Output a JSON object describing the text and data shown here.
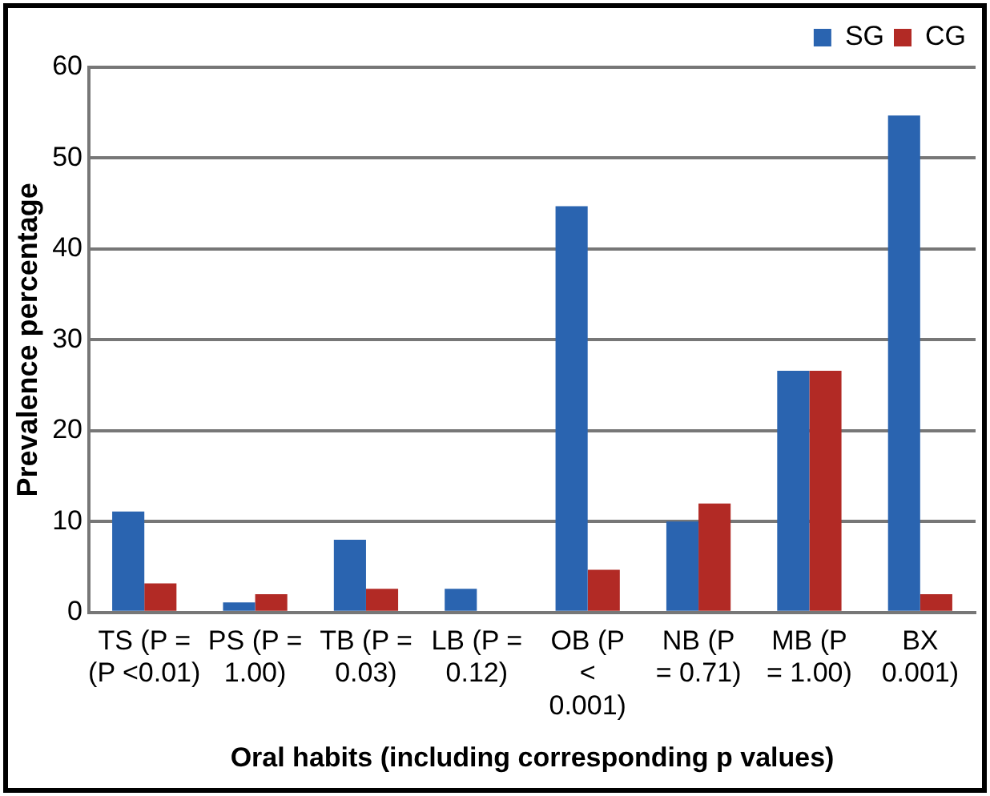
{
  "chart_data": {
    "type": "bar",
    "xlabel": "Oral habits (including corresponding p values)",
    "ylabel": "Prevalence percentage",
    "categories": [
      "TS (P =\n(P <0.01)",
      "PS (P =\n1.00)",
      "TB (P =\n0.03)",
      "LB (P =\n0.12)",
      "OB (P\n<\n0.001)",
      "NB (P\n= 0.71)",
      "MB (P\n= 1.00)",
      "BX\n0.001)"
    ],
    "series": [
      {
        "name": "SG",
        "color": "#2a64b0",
        "values": [
          11.1,
          1.1,
          8.0,
          2.6,
          44.7,
          10.0,
          26.6,
          54.7
        ]
      },
      {
        "name": "CG",
        "color": "#b22a25",
        "values": [
          3.2,
          2.0,
          2.6,
          0,
          4.7,
          12.0,
          26.6,
          2.0
        ]
      }
    ],
    "ylim": [
      0,
      60
    ],
    "yticks": [
      0,
      10,
      20,
      30,
      40,
      50,
      60
    ],
    "grid": "y",
    "legend": "top right"
  }
}
